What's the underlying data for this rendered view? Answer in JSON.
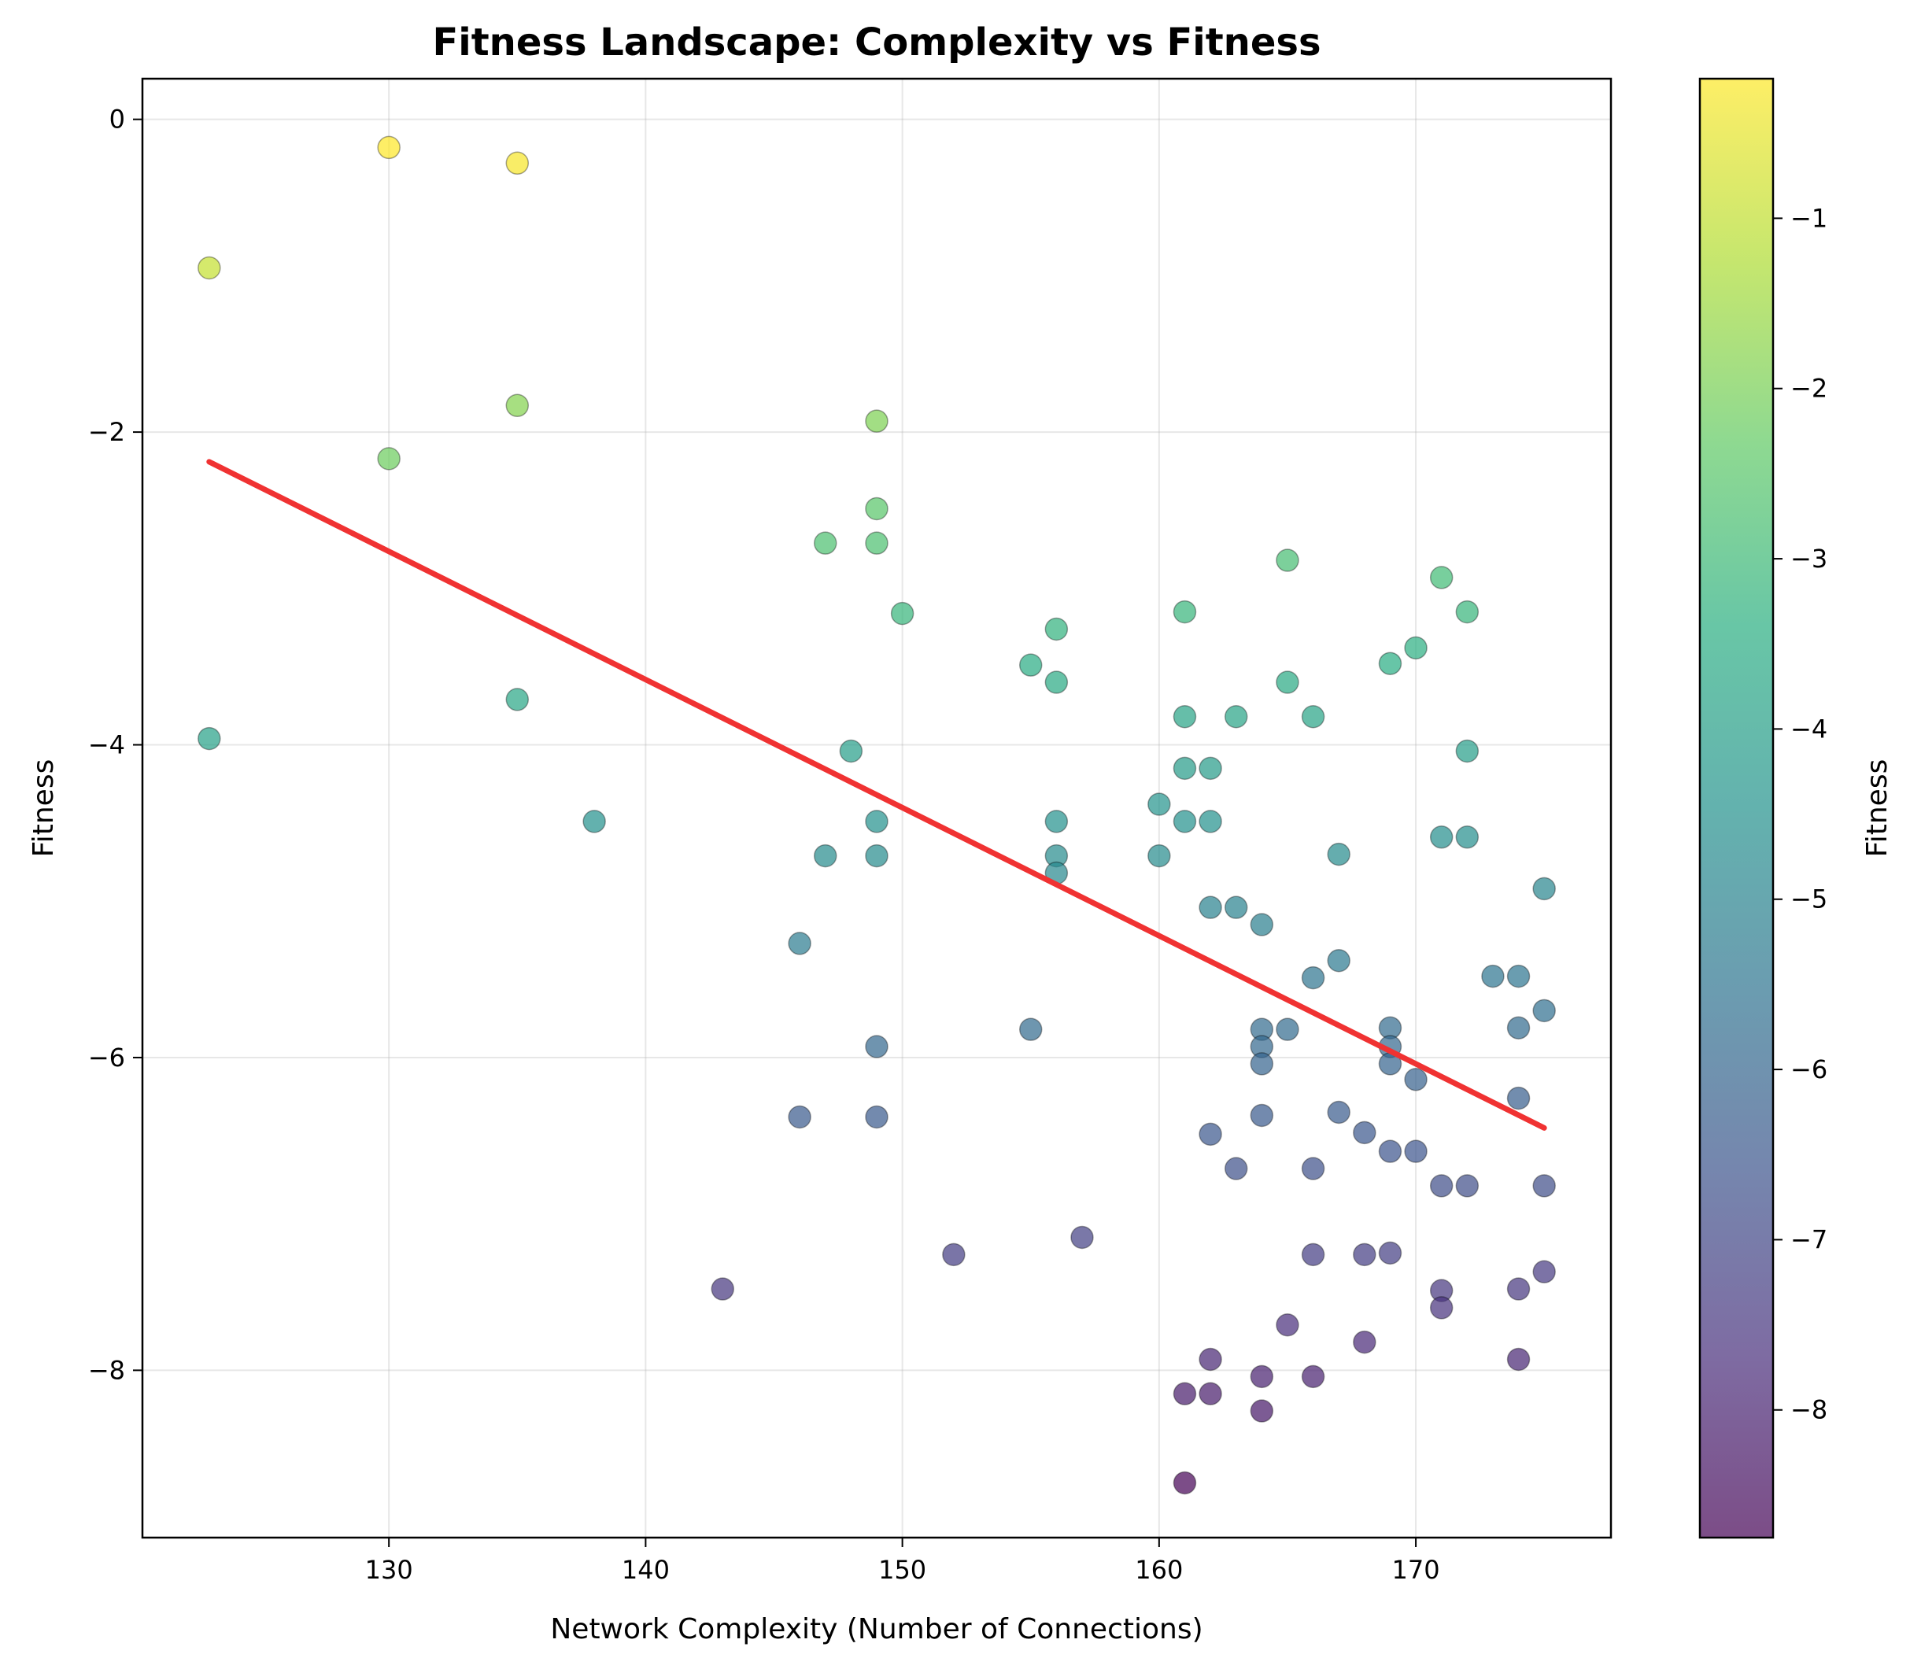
{
  "chart_data": {
    "type": "scatter",
    "title": "Fitness Landscape: Complexity vs Fitness",
    "xlabel": "Network Complexity (Number of Connections)",
    "ylabel": "Fitness",
    "xlim": [
      120.4,
      177.6
    ],
    "ylim": [
      -9.07,
      0.26
    ],
    "xticks": [
      130,
      140,
      150,
      160,
      170
    ],
    "yticks": [
      0,
      -2,
      -4,
      -6,
      -8
    ],
    "grid": true,
    "colormap": "viridis",
    "marker_alpha": 0.7,
    "colorbar": {
      "label": "Fitness",
      "range": [
        -8.75,
        -0.18
      ],
      "ticks": [
        -1,
        -2,
        -3,
        -4,
        -5,
        -6,
        -7,
        -8
      ]
    },
    "trend_line": {
      "color": "#f03232",
      "x": [
        123,
        175
      ],
      "y": [
        -2.19,
        -6.45
      ]
    },
    "points": [
      {
        "x": 123,
        "y": -0.95
      },
      {
        "x": 130,
        "y": -0.18
      },
      {
        "x": 135,
        "y": -0.28
      },
      {
        "x": 123,
        "y": -3.96
      },
      {
        "x": 130,
        "y": -2.17
      },
      {
        "x": 135,
        "y": -1.83
      },
      {
        "x": 135,
        "y": -3.71
      },
      {
        "x": 138,
        "y": -4.49
      },
      {
        "x": 143,
        "y": -7.48
      },
      {
        "x": 146,
        "y": -5.27
      },
      {
        "x": 146,
        "y": -6.38
      },
      {
        "x": 147,
        "y": -2.71
      },
      {
        "x": 147,
        "y": -4.71
      },
      {
        "x": 148,
        "y": -4.04
      },
      {
        "x": 149,
        "y": -1.93
      },
      {
        "x": 149,
        "y": -2.49
      },
      {
        "x": 149,
        "y": -2.71
      },
      {
        "x": 149,
        "y": -4.49
      },
      {
        "x": 149,
        "y": -4.71
      },
      {
        "x": 149,
        "y": -5.93
      },
      {
        "x": 149,
        "y": -6.38
      },
      {
        "x": 150,
        "y": -3.16
      },
      {
        "x": 152,
        "y": -7.26
      },
      {
        "x": 155,
        "y": -3.49
      },
      {
        "x": 155,
        "y": -5.82
      },
      {
        "x": 156,
        "y": -3.26
      },
      {
        "x": 156,
        "y": -3.6
      },
      {
        "x": 156,
        "y": -4.49
      },
      {
        "x": 156,
        "y": -4.71
      },
      {
        "x": 156,
        "y": -4.82
      },
      {
        "x": 157,
        "y": -7.15
      },
      {
        "x": 160,
        "y": -4.38
      },
      {
        "x": 160,
        "y": -4.71
      },
      {
        "x": 161,
        "y": -3.15
      },
      {
        "x": 161,
        "y": -3.82
      },
      {
        "x": 161,
        "y": -4.15
      },
      {
        "x": 161,
        "y": -4.49
      },
      {
        "x": 161,
        "y": -8.15
      },
      {
        "x": 161,
        "y": -8.72
      },
      {
        "x": 162,
        "y": -4.15
      },
      {
        "x": 162,
        "y": -4.49
      },
      {
        "x": 162,
        "y": -5.04
      },
      {
        "x": 162,
        "y": -6.49
      },
      {
        "x": 162,
        "y": -7.93
      },
      {
        "x": 162,
        "y": -8.15
      },
      {
        "x": 163,
        "y": -3.82
      },
      {
        "x": 163,
        "y": -5.04
      },
      {
        "x": 163,
        "y": -6.71
      },
      {
        "x": 164,
        "y": -5.15
      },
      {
        "x": 164,
        "y": -5.82
      },
      {
        "x": 164,
        "y": -5.93
      },
      {
        "x": 164,
        "y": -6.04
      },
      {
        "x": 164,
        "y": -6.37
      },
      {
        "x": 164,
        "y": -8.04
      },
      {
        "x": 164,
        "y": -8.26
      },
      {
        "x": 165,
        "y": -2.82
      },
      {
        "x": 165,
        "y": -3.6
      },
      {
        "x": 165,
        "y": -5.82
      },
      {
        "x": 165,
        "y": -7.71
      },
      {
        "x": 166,
        "y": -3.82
      },
      {
        "x": 166,
        "y": -5.49
      },
      {
        "x": 166,
        "y": -6.71
      },
      {
        "x": 166,
        "y": -7.26
      },
      {
        "x": 166,
        "y": -8.04
      },
      {
        "x": 167,
        "y": -4.7
      },
      {
        "x": 167,
        "y": -5.38
      },
      {
        "x": 167,
        "y": -6.35
      },
      {
        "x": 168,
        "y": -6.48
      },
      {
        "x": 168,
        "y": -7.26
      },
      {
        "x": 168,
        "y": -7.82
      },
      {
        "x": 169,
        "y": -3.48
      },
      {
        "x": 169,
        "y": -5.81
      },
      {
        "x": 169,
        "y": -5.93
      },
      {
        "x": 169,
        "y": -6.04
      },
      {
        "x": 169,
        "y": -6.6
      },
      {
        "x": 169,
        "y": -7.25
      },
      {
        "x": 170,
        "y": -3.38
      },
      {
        "x": 170,
        "y": -6.14
      },
      {
        "x": 170,
        "y": -6.6
      },
      {
        "x": 171,
        "y": -2.93
      },
      {
        "x": 171,
        "y": -4.59
      },
      {
        "x": 171,
        "y": -6.82
      },
      {
        "x": 171,
        "y": -7.49
      },
      {
        "x": 171,
        "y": -7.6
      },
      {
        "x": 172,
        "y": -3.15
      },
      {
        "x": 172,
        "y": -4.04
      },
      {
        "x": 172,
        "y": -4.59
      },
      {
        "x": 172,
        "y": -6.82
      },
      {
        "x": 173,
        "y": -5.48
      },
      {
        "x": 174,
        "y": -5.48
      },
      {
        "x": 174,
        "y": -5.81
      },
      {
        "x": 174,
        "y": -6.26
      },
      {
        "x": 174,
        "y": -7.48
      },
      {
        "x": 174,
        "y": -7.93
      },
      {
        "x": 175,
        "y": -4.92
      },
      {
        "x": 175,
        "y": -5.7
      },
      {
        "x": 175,
        "y": -6.82
      },
      {
        "x": 175,
        "y": -7.37
      }
    ]
  }
}
